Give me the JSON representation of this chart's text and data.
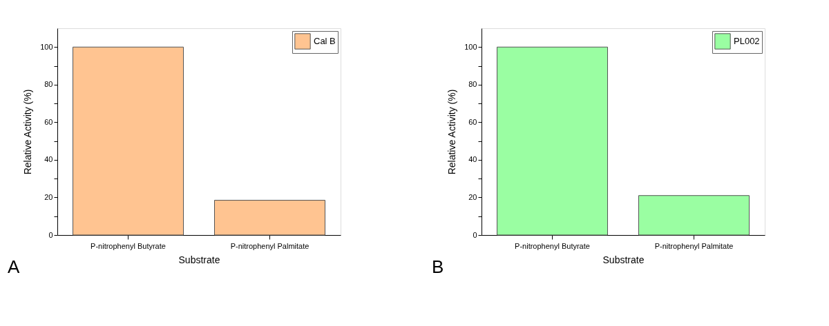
{
  "chart_data": [
    {
      "type": "bar",
      "xlabel": "Substrate",
      "ylabel": "Relative Activity (%)",
      "categories": [
        "P-nitrophenyl Butyrate",
        "P-nitrophenyl Palmitate"
      ],
      "series": [
        {
          "name": "Cal B",
          "color": "#ffc491",
          "values": [
            100,
            18.5
          ]
        }
      ],
      "ylim": [
        0,
        110
      ],
      "yticks": [
        0,
        {
          "value": 10,
          "label": null
        },
        20,
        {
          "value": 30,
          "label": null
        },
        40,
        {
          "value": 50,
          "label": null
        },
        60,
        {
          "value": 70,
          "label": null
        },
        80,
        {
          "value": 90,
          "label": null
        },
        100
      ],
      "legend": "top right",
      "grid": false,
      "annotations": [
        "A"
      ]
    },
    {
      "type": "bar",
      "xlabel": "Substrate",
      "ylabel": "Relative Activity (%)",
      "categories": [
        "P-nitrophenyl Butyrate",
        "P-nitrophenyl Palmitate"
      ],
      "series": [
        {
          "name": "PL002",
          "color": "#9afea2",
          "values": [
            100,
            21
          ]
        }
      ],
      "ylim": [
        0,
        110
      ],
      "yticks": [
        0,
        {
          "value": 10,
          "label": null
        },
        20,
        {
          "value": 30,
          "label": null
        },
        40,
        {
          "value": 50,
          "label": null
        },
        60,
        {
          "value": 70,
          "label": null
        },
        80,
        {
          "value": 90,
          "label": null
        },
        100
      ],
      "legend": "top right",
      "grid": false,
      "annotations": [
        "B"
      ]
    }
  ]
}
